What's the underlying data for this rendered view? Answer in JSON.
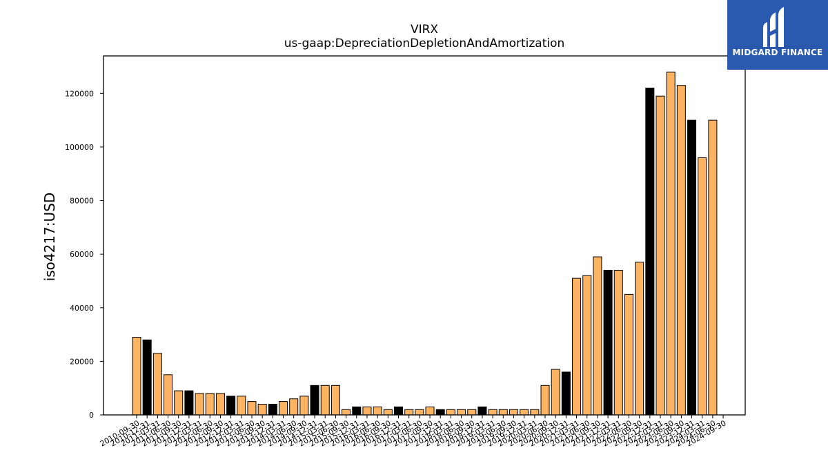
{
  "chart_data": {
    "type": "bar",
    "title": "VIRX",
    "subtitle": "us-gaap:DepreciationDepletionAndAmortization",
    "xlabel": "",
    "ylabel": "iso4217:USD",
    "ylim": [
      0,
      134000
    ],
    "yticks": [
      0,
      20000,
      40000,
      60000,
      80000,
      100000,
      120000
    ],
    "ytick_labels": [
      "0",
      "20000",
      "40000",
      "60000",
      "80000",
      "100000",
      "120000"
    ],
    "bar_color": "#fdb462",
    "highlight_color": "#000000",
    "categories": [
      "2010-09-30",
      "2010-12-31",
      "2011-03-31",
      "2011-06-30",
      "2011-09-30",
      "2011-12-31",
      "2012-03-31",
      "2012-06-30",
      "2012-09-30",
      "2012-12-31",
      "2013-03-31",
      "2013-06-30",
      "2013-09-30",
      "2013-12-31",
      "2014-03-31",
      "2014-06-30",
      "2014-09-30",
      "2014-12-31",
      "2015-03-31",
      "2015-06-30",
      "2015-09-30",
      "2015-12-31",
      "2016-03-31",
      "2016-06-30",
      "2016-09-30",
      "2016-12-31",
      "2017-03-31",
      "2017-06-30",
      "2017-09-30",
      "2017-12-31",
      "2018-03-31",
      "2018-06-30",
      "2018-09-30",
      "2018-12-31",
      "2019-03-31",
      "2019-06-30",
      "2019-09-30",
      "2019-12-31",
      "2020-03-31",
      "2020-06-30",
      "2020-09-30",
      "2020-12-31",
      "2021-03-31",
      "2021-06-30",
      "2021-09-30",
      "2021-12-31",
      "2022-03-31",
      "2022-06-30",
      "2022-09-30",
      "2022-12-31",
      "2023-03-31",
      "2023-06-30",
      "2023-09-30",
      "2023-12-31",
      "2024-03-31",
      "2024-06-30",
      "2024-09-30"
    ],
    "values": [
      29000,
      28000,
      23000,
      15000,
      9000,
      9000,
      8000,
      8000,
      8000,
      7000,
      7000,
      5000,
      4000,
      4000,
      5000,
      6000,
      7000,
      11000,
      11000,
      11000,
      2000,
      3000,
      3000,
      3000,
      2000,
      3000,
      2000,
      2000,
      3000,
      2000,
      2000,
      2000,
      2000,
      3000,
      2000,
      2000,
      2000,
      2000,
      2000,
      11000,
      17000,
      16000,
      51000,
      52000,
      59000,
      54000,
      54000,
      45000,
      57000,
      122000,
      119000,
      128000,
      123000,
      110000,
      96000,
      110000,
      0
    ],
    "highlighted": [
      false,
      true,
      false,
      false,
      false,
      true,
      false,
      false,
      false,
      true,
      false,
      false,
      false,
      true,
      false,
      false,
      false,
      true,
      false,
      false,
      false,
      true,
      false,
      false,
      false,
      true,
      false,
      false,
      false,
      true,
      false,
      false,
      false,
      true,
      false,
      false,
      false,
      false,
      false,
      false,
      false,
      true,
      false,
      false,
      false,
      true,
      false,
      false,
      false,
      true,
      false,
      false,
      false,
      true,
      false,
      false,
      false
    ]
  },
  "logo": {
    "text": "MIDGARD FINANCE",
    "background": "#2a5ab0"
  }
}
